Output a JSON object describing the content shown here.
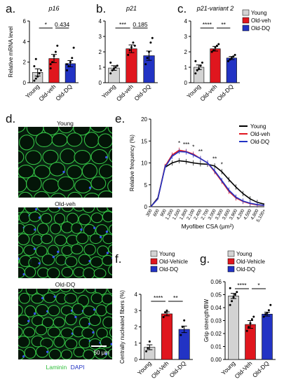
{
  "panels": {
    "a": "a.",
    "b": "b.",
    "c": "c.",
    "d": "d.",
    "e": "e.",
    "f": "f.",
    "g": "g."
  },
  "colors": {
    "young": "#d3d3d3",
    "old_veh": "#e0161e",
    "old_dq": "#2233c4"
  },
  "micrographs": {
    "titles": [
      "Young",
      "Old-veh",
      "Old-DQ"
    ],
    "scale_bar": "50 μm",
    "stain_laminin": "Laminin",
    "stain_dapi": "DAPI"
  },
  "chart_data": [
    {
      "id": "a",
      "type": "bar",
      "title": "p16",
      "ylabel": "Relative mRNA level",
      "categories": [
        "Young",
        "Old-veh",
        "Old-DQ"
      ],
      "values": [
        1.0,
        2.35,
        1.85
      ],
      "errors": [
        0.35,
        0.4,
        0.3
      ],
      "ylim": [
        0,
        6
      ],
      "yticks": [
        "0",
        "2",
        "4",
        "6"
      ],
      "sig": [
        {
          "from": 0,
          "to": 1,
          "label": "*"
        },
        {
          "from": 1,
          "to": 2,
          "label": "0.434"
        }
      ],
      "points": [
        [
          0.2,
          0.4,
          0.6,
          0.9,
          1.2,
          1.6,
          2.3
        ],
        [
          1.4,
          2.0,
          2.6,
          3.0,
          3.6,
          1.8
        ],
        [
          1.2,
          1.6,
          2.0,
          2.4,
          3.4,
          1.8
        ]
      ]
    },
    {
      "id": "b",
      "type": "bar",
      "title": "p21",
      "ylabel": "",
      "categories": [
        "Young",
        "Old-veh",
        "Old-DQ"
      ],
      "values": [
        0.95,
        2.2,
        1.75
      ],
      "errors": [
        0.15,
        0.25,
        0.3
      ],
      "ylim": [
        0,
        4
      ],
      "yticks": [
        "0",
        "1",
        "2",
        "3",
        "4"
      ],
      "sig": [
        {
          "from": 0,
          "to": 1,
          "label": "***"
        },
        {
          "from": 1,
          "to": 2,
          "label": "0.185"
        }
      ],
      "points": [
        [
          0.6,
          0.8,
          0.9,
          1.0,
          1.1,
          1.3
        ],
        [
          1.8,
          2.1,
          2.3,
          2.6,
          2.4
        ],
        [
          1.2,
          1.6,
          2.0,
          2.6,
          2.9
        ]
      ]
    },
    {
      "id": "c",
      "type": "bar",
      "title": "p21-variant 2",
      "ylabel": "",
      "categories": [
        "Young",
        "Old-veh",
        "Old-DQ"
      ],
      "values": [
        1.0,
        2.2,
        1.6
      ],
      "errors": [
        0.15,
        0.15,
        0.1
      ],
      "ylim": [
        0,
        4
      ],
      "yticks": [
        "0",
        "1",
        "2",
        "3",
        "4"
      ],
      "sig": [
        {
          "from": 0,
          "to": 1,
          "label": "****"
        },
        {
          "from": 1,
          "to": 2,
          "label": "**"
        }
      ],
      "legend": [
        "Young",
        "Old-veh",
        "Old-DQ"
      ],
      "points": [
        [
          0.6,
          0.8,
          0.9,
          1.1,
          1.3,
          1.4
        ],
        [
          2.0,
          2.1,
          2.3,
          2.4,
          2.5
        ],
        [
          1.4,
          1.5,
          1.6,
          1.7,
          1.8
        ]
      ]
    },
    {
      "id": "e",
      "type": "line",
      "xlabel": "Myofiber CSA (μm²)",
      "ylabel": "Relative frequency (%)",
      "categories": [
        "300",
        "600",
        "900",
        "1,200",
        "1,500",
        "1,800",
        "2,100",
        "2,400",
        "2,700",
        "3,000",
        "3,300",
        "3,600",
        "3,900",
        "4,200",
        "4,500",
        "4,800",
        "5,100+"
      ],
      "ylim": [
        0,
        20
      ],
      "yticks": [
        "0",
        "5",
        "10",
        "15",
        "20"
      ],
      "series": [
        {
          "name": "Young",
          "color": "#000000",
          "values": [
            0,
            2.0,
            9.0,
            10.0,
            10.5,
            10.3,
            10.0,
            9.8,
            9.7,
            9.3,
            8.0,
            6.2,
            4.5,
            3.0,
            1.8,
            1.0,
            0.6
          ]
        },
        {
          "name": "Old-veh",
          "color": "#e0161e",
          "values": [
            0,
            1.8,
            9.2,
            11.8,
            12.9,
            12.6,
            12.0,
            11.0,
            10.0,
            8.0,
            5.8,
            3.5,
            2.0,
            1.2,
            0.7,
            0.4,
            0.3
          ]
        },
        {
          "name": "Old-DQ",
          "color": "#2233c4",
          "values": [
            0,
            1.8,
            9.0,
            11.5,
            12.6,
            12.5,
            11.8,
            11.0,
            10.0,
            8.2,
            6.0,
            3.8,
            2.2,
            1.3,
            0.8,
            0.5,
            0.3
          ]
        }
      ],
      "annotations": [
        "*",
        "***",
        "*",
        "**",
        "**",
        "*"
      ]
    },
    {
      "id": "f",
      "type": "bar",
      "ylabel": "Centrally nucleated fibers (%)",
      "categories": [
        "Young",
        "Old-Veh",
        "Old-DQ"
      ],
      "values": [
        0.75,
        2.8,
        1.85
      ],
      "errors": [
        0.15,
        0.12,
        0.2
      ],
      "ylim": [
        0,
        4
      ],
      "yticks": [
        "0",
        "1",
        "2",
        "3",
        "4"
      ],
      "sig": [
        {
          "from": 0,
          "to": 1,
          "label": "****"
        },
        {
          "from": 1,
          "to": 2,
          "label": "**"
        }
      ],
      "legend": [
        "Young",
        "Old-Vehicle",
        "Old-DQ"
      ],
      "points": [
        [
          0.5,
          0.7,
          1.1
        ],
        [
          2.6,
          2.9,
          3.0
        ],
        [
          1.5,
          2.0,
          2.4
        ]
      ]
    },
    {
      "id": "g",
      "type": "bar",
      "ylabel": "Grip strength/BW",
      "categories": [
        "Young",
        "Old-Veh",
        "Old-DQ"
      ],
      "values": [
        0.049,
        0.027,
        0.035
      ],
      "errors": [
        0.002,
        0.003,
        0.0015
      ],
      "ylim": [
        0,
        0.06
      ],
      "yticks": [
        "0.00",
        "0.01",
        "0.02",
        "0.03",
        "0.04",
        "0.05",
        "0.06"
      ],
      "sig": [
        {
          "from": 0,
          "to": 1,
          "label": "****"
        },
        {
          "from": 1,
          "to": 2,
          "label": "*"
        }
      ],
      "legend": [
        "Young",
        "Old-Vehicle",
        "Old-DQ"
      ],
      "points": [
        [
          0.042,
          0.045,
          0.048,
          0.05,
          0.052,
          0.055
        ],
        [
          0.022,
          0.025,
          0.028,
          0.031,
          0.033
        ],
        [
          0.033,
          0.035,
          0.036,
          0.038,
          0.042
        ]
      ]
    }
  ]
}
